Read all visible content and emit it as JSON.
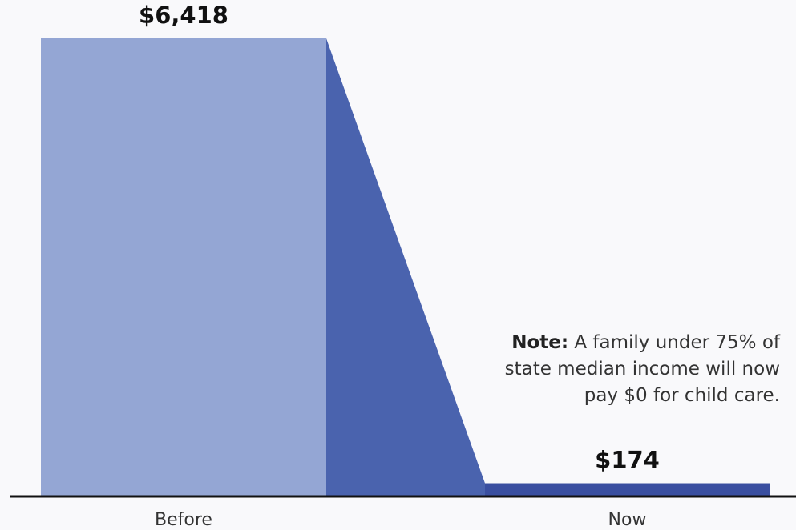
{
  "chart_data": {
    "type": "bar",
    "categories": [
      "Before",
      "Now"
    ],
    "values": [
      6418,
      174
    ],
    "value_labels": [
      "$6,418",
      "$174"
    ],
    "colors": [
      "#94a6d4",
      "#3a4fa0"
    ],
    "connector_color": "#4a63ae",
    "annotation": {
      "lead": "Note:",
      "text": "A family under 75% of state median income will now pay $0 for child care."
    }
  }
}
